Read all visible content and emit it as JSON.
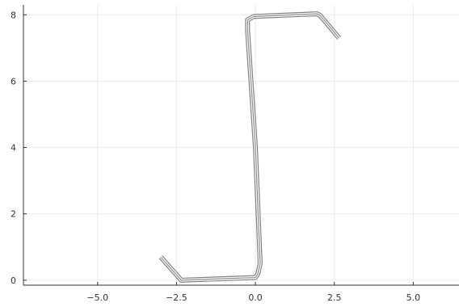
{
  "chart_data": {
    "type": "line",
    "title": "",
    "xlabel": "",
    "ylabel": "",
    "xlim": [
      -7.35,
      6.45
    ],
    "ylim": [
      -0.15,
      8.3
    ],
    "grid": true,
    "legend": "none",
    "x_ticks": [
      -5.0,
      -2.5,
      0.0,
      2.5,
      5.0
    ],
    "x_tick_labels": [
      "−5.0",
      "−2.5",
      "0.0",
      "2.5",
      "5.0"
    ],
    "y_ticks": [
      0,
      2,
      4,
      6,
      8
    ],
    "y_tick_labels": [
      "0",
      "2",
      "4",
      "6",
      "8"
    ],
    "colors": {
      "outer": "#808080",
      "inner": "#ffffff",
      "core": "#8c8c8c",
      "grid": "#ebebeb",
      "axis": "#333333"
    },
    "series": [
      {
        "x": [
          -3.0,
          -2.35,
          0.0,
          0.08,
          0.15,
          0.0,
          -0.25,
          -0.25,
          -0.05,
          1.95,
          2.05,
          2.65
        ],
        "y": [
          0.7,
          0.0,
          0.08,
          0.2,
          0.5,
          4.0,
          7.55,
          7.85,
          7.95,
          8.03,
          7.98,
          7.3
        ]
      }
    ]
  }
}
